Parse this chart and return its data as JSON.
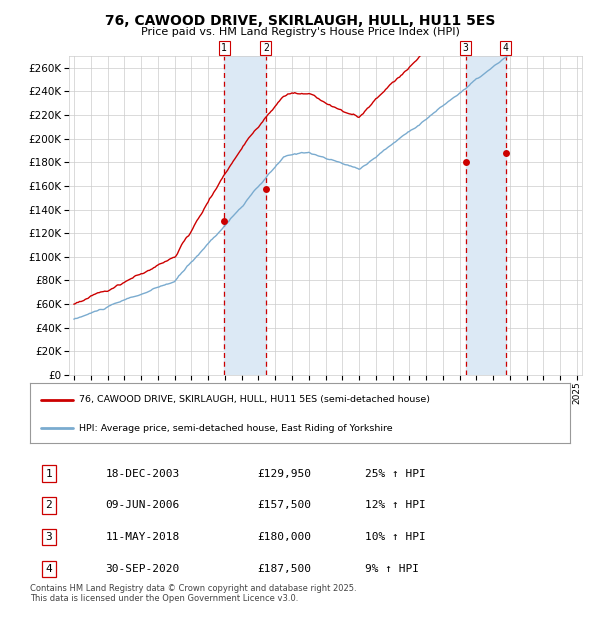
{
  "title": "76, CAWOOD DRIVE, SKIRLAUGH, HULL, HU11 5ES",
  "subtitle": "Price paid vs. HM Land Registry's House Price Index (HPI)",
  "red_label": "76, CAWOOD DRIVE, SKIRLAUGH, HULL, HU11 5ES (semi-detached house)",
  "blue_label": "HPI: Average price, semi-detached house, East Riding of Yorkshire",
  "footer": "Contains HM Land Registry data © Crown copyright and database right 2025.\nThis data is licensed under the Open Government Licence v3.0.",
  "transactions": [
    {
      "num": 1,
      "date": "18-DEC-2003",
      "price": 129950,
      "pct": "25%",
      "year": 2003.96
    },
    {
      "num": 2,
      "date": "09-JUN-2006",
      "price": 157500,
      "pct": "12%",
      "year": 2006.44
    },
    {
      "num": 3,
      "date": "11-MAY-2018",
      "price": 180000,
      "pct": "10%",
      "year": 2018.36
    },
    {
      "num": 4,
      "date": "30-SEP-2020",
      "price": 187500,
      "pct": "9%",
      "year": 2020.75
    }
  ],
  "ylim": [
    0,
    270000
  ],
  "yticks": [
    0,
    20000,
    40000,
    60000,
    80000,
    100000,
    120000,
    140000,
    160000,
    180000,
    200000,
    220000,
    240000,
    260000
  ],
  "red_color": "#cc0000",
  "blue_color": "#7aabcf",
  "shade_color": "#dce9f5",
  "vline_color": "#cc0000",
  "dot_color": "#cc0000",
  "bg_color": "#ffffff",
  "grid_color": "#cccccc",
  "title_color": "#000000",
  "start_year": 1995,
  "end_year": 2025
}
